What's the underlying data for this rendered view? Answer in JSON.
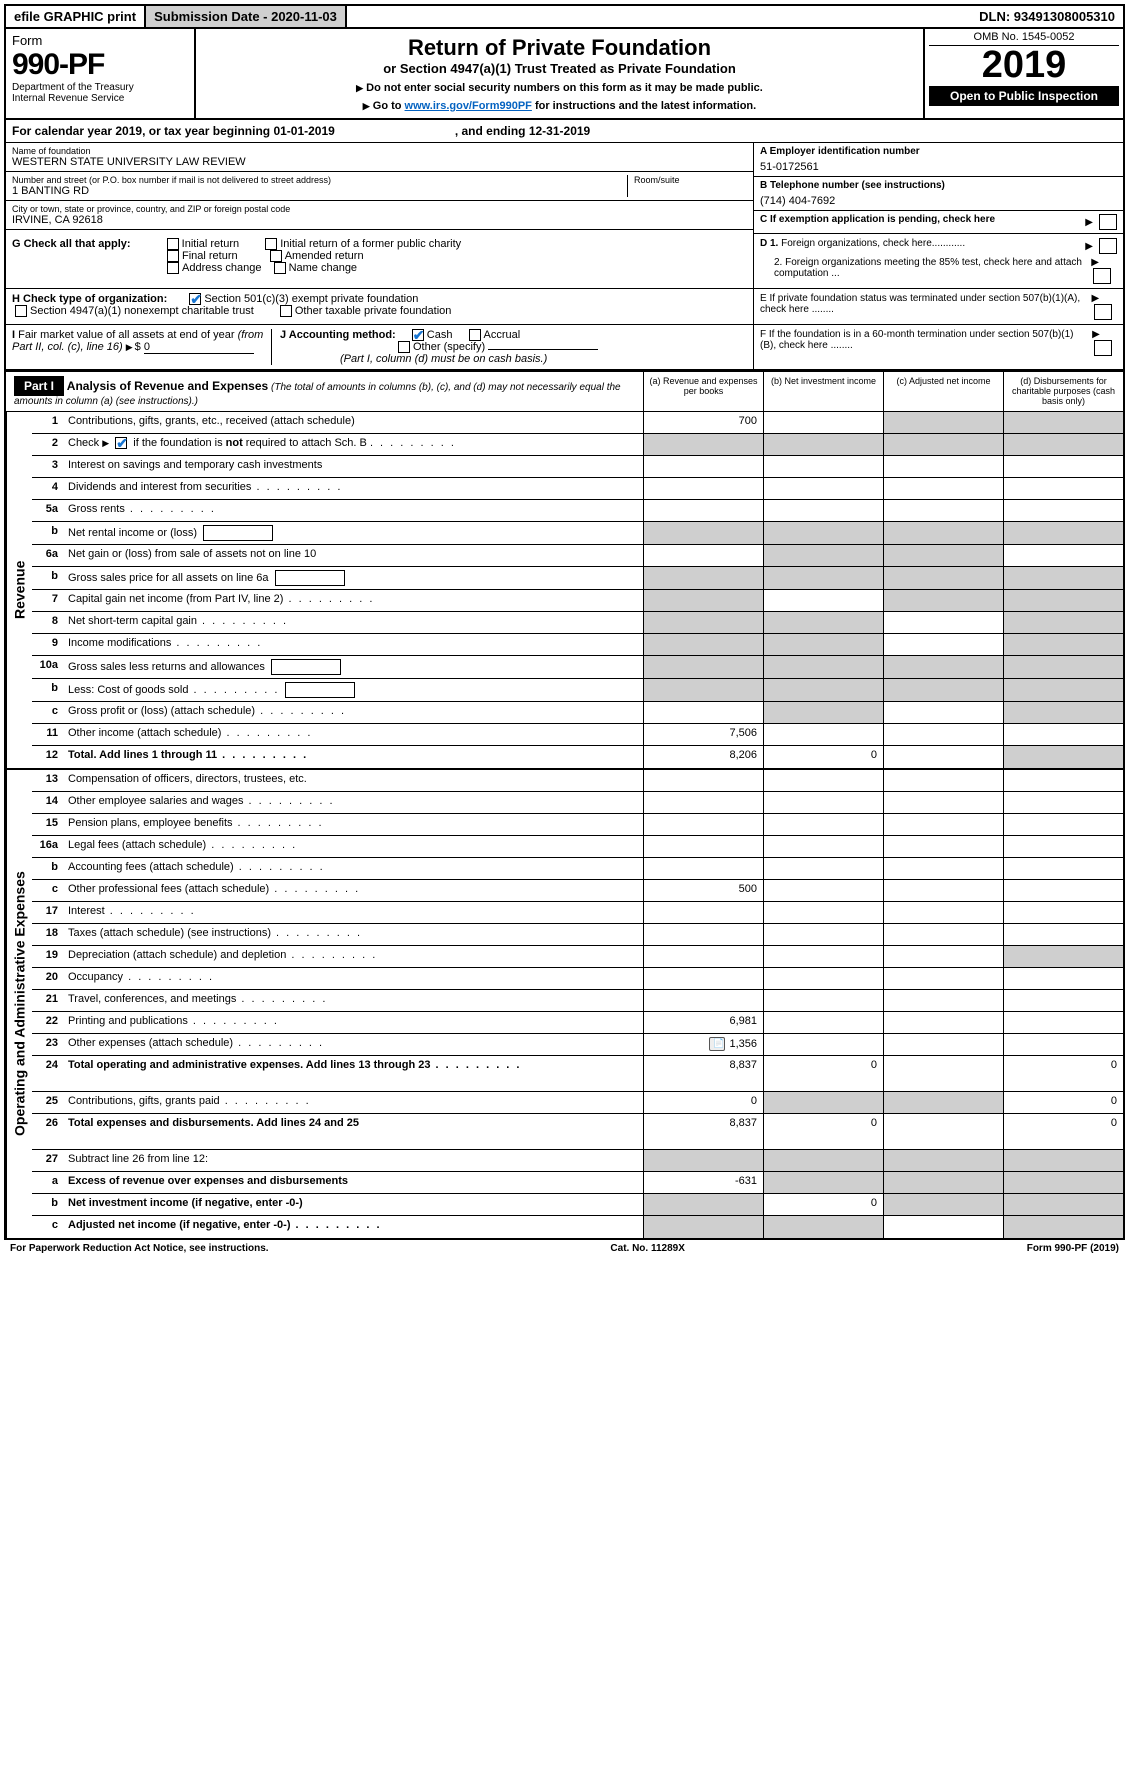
{
  "topbar": {
    "efile": "efile GRAPHIC print",
    "sub_label": "Submission Date - 2020-11-03",
    "dln": "DLN: 93491308005310"
  },
  "header": {
    "form_word": "Form",
    "form_no": "990-PF",
    "dept1": "Department of the Treasury",
    "dept2": "Internal Revenue Service",
    "title": "Return of Private Foundation",
    "subtitle": "or Section 4947(a)(1) Trust Treated as Private Foundation",
    "instr1": "Do not enter social security numbers on this form as it may be made public.",
    "instr2_pre": "Go to ",
    "instr2_link": "www.irs.gov/Form990PF",
    "instr2_post": " for instructions and the latest information.",
    "omb": "OMB No. 1545-0052",
    "year": "2019",
    "open_pub": "Open to Public Inspection"
  },
  "calendar": {
    "text_a": "For calendar year 2019, or tax year beginning 01-01-2019",
    "text_b": ", and ending 12-31-2019"
  },
  "ident": {
    "name_lbl": "Name of foundation",
    "name": "WESTERN STATE UNIVERSITY LAW REVIEW",
    "addr_lbl": "Number and street (or P.O. box number if mail is not delivered to street address)",
    "addr": "1 BANTING RD",
    "room_lbl": "Room/suite",
    "city_lbl": "City or town, state or province, country, and ZIP or foreign postal code",
    "city": "IRVINE, CA  92618",
    "ein_lbl": "A Employer identification number",
    "ein": "51-0172561",
    "phone_lbl": "B Telephone number (see instructions)",
    "phone": "(714) 404-7692",
    "c_lbl": "C  If exemption application is pending, check here"
  },
  "g": {
    "label": "G Check all that apply:",
    "opts": [
      "Initial return",
      "Initial return of a former public charity",
      "Final return",
      "Amended return",
      "Address change",
      "Name change"
    ]
  },
  "h": {
    "label": "H Check type of organization:",
    "opt1": "Section 501(c)(3) exempt private foundation",
    "opt2": "Section 4947(a)(1) nonexempt charitable trust",
    "opt3": "Other taxable private foundation"
  },
  "i": {
    "label": "I Fair market value of all assets at end of year (from Part II, col. (c), line 16)",
    "val_prefix": "$",
    "val": "0"
  },
  "j": {
    "label": "J Accounting method:",
    "cash": "Cash",
    "accrual": "Accrual",
    "other": "Other (specify)",
    "note": "(Part I, column (d) must be on cash basis.)"
  },
  "d_block": {
    "d1": "D 1. Foreign organizations, check here............",
    "d2": "2. Foreign organizations meeting the 85% test, check here and attach computation ...",
    "e": "E  If private foundation status was terminated under section 507(b)(1)(A), check here ........",
    "f": "F  If the foundation is in a 60-month termination under section 507(b)(1)(B), check here ........"
  },
  "part1": {
    "label": "Part I",
    "title": "Analysis of Revenue and Expenses",
    "note": "(The total of amounts in columns (b), (c), and (d) may not necessarily equal the amounts in column (a) (see instructions).)",
    "col_a": "(a)  Revenue and expenses per books",
    "col_b": "(b)  Net investment income",
    "col_c": "(c)  Adjusted net income",
    "col_d": "(d)  Disbursements for charitable purposes (cash basis only)"
  },
  "side_labels": {
    "rev": "Revenue",
    "exp": "Operating and Administrative Expenses"
  },
  "revenue_rows": [
    {
      "n": "1",
      "desc": "Contributions, gifts, grants, etc., received (attach schedule)",
      "a": "700",
      "shade_b": false,
      "shade_c": true,
      "shade_d": true
    },
    {
      "n": "2",
      "desc": "Check ▶ ☑ if the foundation is not required to attach Sch. B",
      "dots": true,
      "shade_a": true,
      "shade_b": true,
      "shade_c": true,
      "shade_d": true
    },
    {
      "n": "3",
      "desc": "Interest on savings and temporary cash investments"
    },
    {
      "n": "4",
      "desc": "Dividends and interest from securities",
      "dots": true
    },
    {
      "n": "5a",
      "desc": "Gross rents",
      "dots": true
    },
    {
      "n": "b",
      "desc": "Net rental income or (loss)",
      "inline": true,
      "shade_a": true,
      "shade_b": true,
      "shade_c": true,
      "shade_d": true
    },
    {
      "n": "6a",
      "desc": "Net gain or (loss) from sale of assets not on line 10",
      "shade_b": true,
      "shade_c": true
    },
    {
      "n": "b",
      "desc": "Gross sales price for all assets on line 6a",
      "inline": true,
      "shade_a": true,
      "shade_b": true,
      "shade_c": true,
      "shade_d": true
    },
    {
      "n": "7",
      "desc": "Capital gain net income (from Part IV, line 2)",
      "dots": true,
      "shade_a": true,
      "shade_c": true,
      "shade_d": true
    },
    {
      "n": "8",
      "desc": "Net short-term capital gain",
      "dots": true,
      "shade_a": true,
      "shade_b": true,
      "shade_d": true
    },
    {
      "n": "9",
      "desc": "Income modifications",
      "dots": true,
      "shade_a": true,
      "shade_b": true,
      "shade_d": true
    },
    {
      "n": "10a",
      "desc": "Gross sales less returns and allowances",
      "inline": true,
      "shade_a": true,
      "shade_b": true,
      "shade_c": true,
      "shade_d": true
    },
    {
      "n": "b",
      "desc": "Less: Cost of goods sold",
      "dots": true,
      "inline": true,
      "shade_a": true,
      "shade_b": true,
      "shade_c": true,
      "shade_d": true
    },
    {
      "n": "c",
      "desc": "Gross profit or (loss) (attach schedule)",
      "dots": true,
      "shade_b": true,
      "shade_d": true
    },
    {
      "n": "11",
      "desc": "Other income (attach schedule)",
      "dots": true,
      "a": "7,506"
    },
    {
      "n": "12",
      "desc": "Total. Add lines 1 through 11",
      "dots": true,
      "bold": true,
      "a": "8,206",
      "b": "0",
      "shade_d": true
    }
  ],
  "expense_rows": [
    {
      "n": "13",
      "desc": "Compensation of officers, directors, trustees, etc."
    },
    {
      "n": "14",
      "desc": "Other employee salaries and wages",
      "dots": true
    },
    {
      "n": "15",
      "desc": "Pension plans, employee benefits",
      "dots": true
    },
    {
      "n": "16a",
      "desc": "Legal fees (attach schedule)",
      "dots": true
    },
    {
      "n": "b",
      "desc": "Accounting fees (attach schedule)",
      "dots": true
    },
    {
      "n": "c",
      "desc": "Other professional fees (attach schedule)",
      "dots": true,
      "a": "500"
    },
    {
      "n": "17",
      "desc": "Interest",
      "dots": true
    },
    {
      "n": "18",
      "desc": "Taxes (attach schedule) (see instructions)",
      "dots": true
    },
    {
      "n": "19",
      "desc": "Depreciation (attach schedule) and depletion",
      "dots": true,
      "shade_d": true
    },
    {
      "n": "20",
      "desc": "Occupancy",
      "dots": true
    },
    {
      "n": "21",
      "desc": "Travel, conferences, and meetings",
      "dots": true
    },
    {
      "n": "22",
      "desc": "Printing and publications",
      "dots": true,
      "a": "6,981"
    },
    {
      "n": "23",
      "desc": "Other expenses (attach schedule)",
      "dots": true,
      "a": "1,356",
      "icon": true
    },
    {
      "n": "24",
      "desc": "Total operating and administrative expenses. Add lines 13 through 23",
      "dots": true,
      "bold": true,
      "a": "8,837",
      "b": "0",
      "d": "0",
      "tall": true
    },
    {
      "n": "25",
      "desc": "Contributions, gifts, grants paid",
      "dots": true,
      "a": "0",
      "shade_b": true,
      "shade_c": true,
      "d": "0"
    },
    {
      "n": "26",
      "desc": "Total expenses and disbursements. Add lines 24 and 25",
      "bold": true,
      "a": "8,837",
      "b": "0",
      "d": "0",
      "tall": true
    },
    {
      "n": "27",
      "desc": "Subtract line 26 from line 12:",
      "shade_a": true,
      "shade_b": true,
      "shade_c": true,
      "shade_d": true
    },
    {
      "n": "a",
      "desc": "Excess of revenue over expenses and disbursements",
      "bold": true,
      "a": "-631",
      "shade_b": true,
      "shade_c": true,
      "shade_d": true
    },
    {
      "n": "b",
      "desc": "Net investment income (if negative, enter -0-)",
      "bold": true,
      "shade_a": true,
      "b": "0",
      "shade_c": true,
      "shade_d": true
    },
    {
      "n": "c",
      "desc": "Adjusted net income (if negative, enter -0-)",
      "bold": true,
      "dots": true,
      "shade_a": true,
      "shade_b": true,
      "shade_d": true
    }
  ],
  "footer": {
    "left": "For Paperwork Reduction Act Notice, see instructions.",
    "mid": "Cat. No. 11289X",
    "right": "Form 990-PF (2019)"
  },
  "colors": {
    "shade": "#cfcfcf",
    "link": "#0563c1",
    "check": "#1976d2"
  }
}
